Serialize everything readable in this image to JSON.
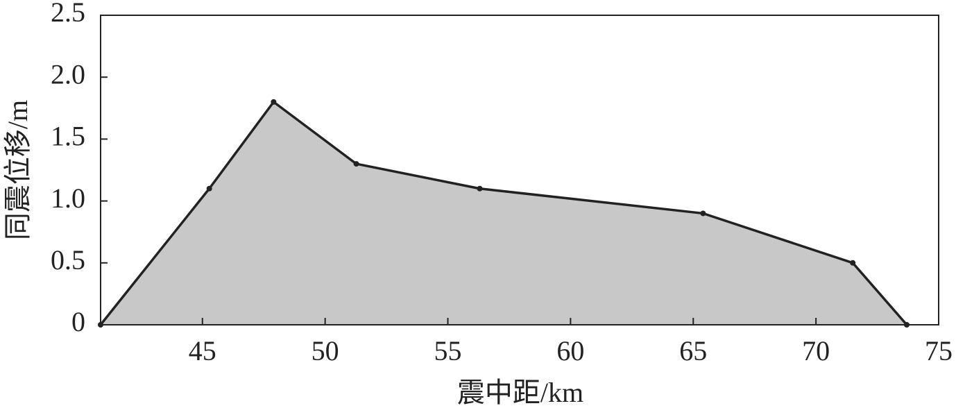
{
  "chart_data": {
    "type": "area",
    "xlabel": "震中距/km",
    "ylabel": "同震位移/m",
    "x": [
      40.85,
      45.28,
      47.9,
      51.27,
      56.3,
      65.4,
      71.5,
      73.7
    ],
    "series": [
      {
        "values": [
          0,
          1.1,
          1.8,
          1.3,
          1.1,
          0.9,
          0.5,
          0
        ],
        "color": "#222222",
        "fill": "#c8c8c8"
      }
    ],
    "xlim": [
      40.85,
      75
    ],
    "xticks": [
      45,
      50,
      55,
      60,
      65,
      70,
      75
    ],
    "ylim": [
      0,
      2.5
    ],
    "yticks": [
      0,
      0.5,
      {
        "value": 1,
        "label": "1.0"
      },
      1.5,
      {
        "value": 2,
        "label": "2.0"
      },
      2.5
    ]
  }
}
